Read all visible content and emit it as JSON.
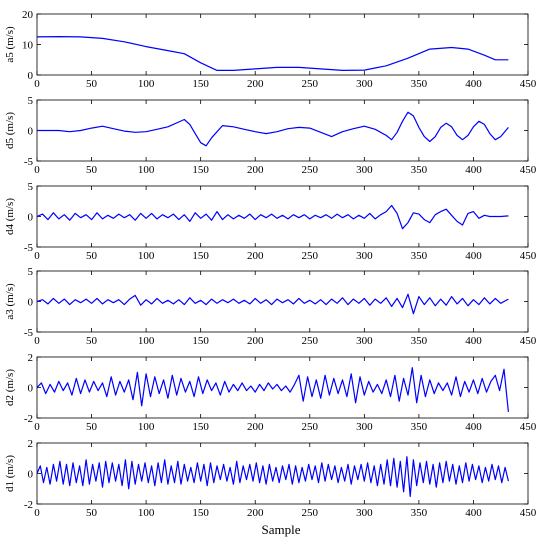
{
  "figure": {
    "xlabel": "Sample"
  },
  "colors": {
    "trace": "#0000ff",
    "axis": "#000000",
    "background": "#ffffff"
  },
  "chart_data": [
    {
      "type": "line",
      "ylabel": "a5 (m/s)",
      "xlim": [
        0,
        450
      ],
      "ylim": [
        0,
        20
      ],
      "xticks": [
        0,
        50,
        100,
        150,
        200,
        250,
        300,
        350,
        400,
        450
      ],
      "yticks": [
        0,
        10,
        20
      ],
      "x": [
        0,
        20,
        40,
        60,
        80,
        100,
        120,
        135,
        150,
        165,
        180,
        200,
        220,
        240,
        260,
        280,
        300,
        320,
        340,
        360,
        380,
        395,
        410,
        420,
        432
      ],
      "y": [
        12.5,
        12.6,
        12.5,
        12.0,
        10.9,
        9.3,
        8.0,
        7.0,
        4.0,
        1.5,
        1.5,
        2.0,
        2.5,
        2.5,
        2.0,
        1.5,
        1.6,
        3.0,
        5.5,
        8.5,
        9.0,
        8.5,
        6.5,
        5.0,
        5.0
      ],
      "grid": false
    },
    {
      "type": "line",
      "ylabel": "d5 (m/s)",
      "xlim": [
        0,
        450
      ],
      "ylim": [
        -5,
        5
      ],
      "xticks": [
        0,
        50,
        100,
        150,
        200,
        250,
        300,
        350,
        400,
        450
      ],
      "yticks": [
        -5,
        0,
        5
      ],
      "x": [
        0,
        10,
        20,
        30,
        40,
        50,
        60,
        70,
        80,
        90,
        100,
        110,
        120,
        130,
        135,
        140,
        145,
        150,
        155,
        160,
        170,
        180,
        190,
        200,
        210,
        220,
        230,
        240,
        250,
        260,
        270,
        280,
        290,
        300,
        310,
        320,
        325,
        330,
        335,
        340,
        345,
        350,
        355,
        360,
        365,
        370,
        375,
        380,
        385,
        390,
        395,
        400,
        405,
        410,
        415,
        420,
        425,
        432
      ],
      "y": [
        0.0,
        0.0,
        0.0,
        -0.2,
        0.0,
        0.4,
        0.7,
        0.3,
        -0.1,
        -0.3,
        -0.2,
        0.2,
        0.6,
        1.4,
        1.8,
        1.0,
        -0.5,
        -2.0,
        -2.5,
        -1.2,
        0.8,
        0.6,
        0.2,
        -0.2,
        -0.5,
        -0.2,
        0.3,
        0.5,
        0.4,
        -0.3,
        -1.0,
        -0.2,
        0.3,
        0.7,
        0.2,
        -0.8,
        -1.5,
        -0.3,
        1.5,
        3.0,
        2.4,
        0.5,
        -1.0,
        -1.8,
        -1.0,
        0.5,
        1.2,
        0.6,
        -0.8,
        -1.5,
        -0.8,
        0.6,
        1.5,
        1.0,
        -0.5,
        -1.5,
        -1.0,
        0.5
      ],
      "grid": false
    },
    {
      "type": "line",
      "ylabel": "d4 (m/s)",
      "xlim": [
        0,
        450
      ],
      "ylim": [
        -5,
        5
      ],
      "xticks": [
        0,
        50,
        100,
        150,
        200,
        250,
        300,
        350,
        400,
        450
      ],
      "yticks": [
        -5,
        0,
        5
      ],
      "x": [
        0,
        5,
        10,
        15,
        20,
        25,
        30,
        35,
        40,
        45,
        50,
        55,
        60,
        65,
        70,
        75,
        80,
        85,
        90,
        95,
        100,
        105,
        110,
        115,
        120,
        125,
        130,
        135,
        140,
        145,
        150,
        155,
        160,
        165,
        170,
        175,
        180,
        185,
        190,
        195,
        200,
        205,
        210,
        215,
        220,
        225,
        230,
        235,
        240,
        245,
        250,
        255,
        260,
        265,
        270,
        275,
        280,
        285,
        290,
        295,
        300,
        305,
        310,
        315,
        320,
        325,
        330,
        335,
        340,
        345,
        350,
        355,
        360,
        365,
        370,
        375,
        380,
        385,
        390,
        395,
        400,
        405,
        410,
        415,
        420,
        425,
        432
      ],
      "y": [
        0.0,
        0.4,
        -0.5,
        0.6,
        -0.4,
        0.3,
        -0.6,
        0.5,
        -0.2,
        0.3,
        -0.5,
        0.6,
        -0.4,
        0.2,
        -0.3,
        0.4,
        -0.2,
        0.3,
        -0.6,
        0.5,
        -0.3,
        0.5,
        -0.4,
        0.3,
        -0.2,
        0.4,
        -0.5,
        0.3,
        -0.8,
        0.6,
        -0.3,
        0.4,
        -0.6,
        0.8,
        -0.5,
        0.3,
        -0.4,
        0.2,
        -0.3,
        0.4,
        -0.5,
        0.3,
        -0.2,
        0.4,
        -0.3,
        0.2,
        -0.4,
        0.3,
        -0.2,
        0.3,
        -0.4,
        0.2,
        -0.2,
        0.3,
        -0.3,
        0.4,
        -0.2,
        0.3,
        -0.4,
        0.2,
        -0.3,
        0.5,
        -0.4,
        0.3,
        0.8,
        1.8,
        0.5,
        -2.0,
        -1.0,
        0.6,
        0.4,
        -0.5,
        -1.0,
        0.3,
        0.8,
        1.2,
        0.2,
        -0.8,
        -1.4,
        0.5,
        0.8,
        -0.3,
        0.2,
        0.0,
        0.0,
        0.0,
        0.1
      ],
      "grid": false
    },
    {
      "type": "line",
      "ylabel": "a3 (m/s)",
      "xlim": [
        0,
        450
      ],
      "ylim": [
        -5,
        5
      ],
      "xticks": [
        0,
        50,
        100,
        150,
        200,
        250,
        300,
        350,
        400,
        450
      ],
      "yticks": [
        -5,
        0,
        5
      ],
      "x": [
        0,
        5,
        10,
        15,
        20,
        25,
        30,
        35,
        40,
        45,
        50,
        55,
        60,
        65,
        70,
        75,
        80,
        85,
        90,
        95,
        100,
        105,
        110,
        115,
        120,
        125,
        130,
        135,
        140,
        145,
        150,
        155,
        160,
        165,
        170,
        175,
        180,
        185,
        190,
        195,
        200,
        205,
        210,
        215,
        220,
        225,
        230,
        235,
        240,
        245,
        250,
        255,
        260,
        265,
        270,
        275,
        280,
        285,
        290,
        295,
        300,
        305,
        310,
        315,
        320,
        325,
        330,
        335,
        340,
        345,
        350,
        355,
        360,
        365,
        370,
        375,
        380,
        385,
        390,
        395,
        400,
        405,
        410,
        415,
        420,
        425,
        432
      ],
      "y": [
        0.0,
        0.3,
        -0.4,
        0.5,
        -0.3,
        0.4,
        -0.5,
        0.3,
        -0.2,
        0.4,
        -0.3,
        0.5,
        -0.4,
        0.3,
        -0.2,
        0.3,
        -0.5,
        0.4,
        1.0,
        -0.6,
        0.3,
        -0.4,
        0.5,
        -0.3,
        0.2,
        -0.4,
        0.3,
        -0.5,
        0.6,
        -0.3,
        0.2,
        -0.5,
        0.4,
        -0.3,
        0.3,
        -0.2,
        0.4,
        -0.3,
        0.2,
        -0.4,
        0.5,
        -0.3,
        0.3,
        -0.5,
        0.4,
        -0.2,
        0.3,
        -0.4,
        0.5,
        -0.3,
        0.2,
        -0.4,
        0.3,
        -0.5,
        0.4,
        -0.3,
        0.6,
        -0.5,
        0.4,
        -0.3,
        0.5,
        -0.6,
        0.4,
        -0.3,
        0.6,
        -0.8,
        0.5,
        -1.0,
        1.2,
        -2.0,
        0.8,
        -0.5,
        0.6,
        -0.7,
        0.4,
        -0.6,
        0.8,
        -0.4,
        0.5,
        -0.7,
        0.3,
        -0.5,
        0.6,
        -0.4,
        0.5,
        -0.3,
        0.4
      ],
      "grid": false
    },
    {
      "type": "line",
      "ylabel": "d2 (m/s)",
      "xlim": [
        0,
        450
      ],
      "ylim": [
        -2,
        2
      ],
      "xticks": [
        0,
        50,
        100,
        150,
        200,
        250,
        300,
        350,
        400,
        450
      ],
      "yticks": [
        -2,
        0,
        2
      ],
      "x": [
        0,
        4,
        8,
        12,
        16,
        20,
        24,
        28,
        32,
        36,
        40,
        44,
        48,
        52,
        56,
        60,
        64,
        68,
        72,
        76,
        80,
        84,
        88,
        92,
        96,
        100,
        104,
        108,
        112,
        116,
        120,
        124,
        128,
        132,
        136,
        140,
        144,
        148,
        152,
        156,
        160,
        164,
        168,
        172,
        176,
        180,
        184,
        188,
        192,
        196,
        200,
        204,
        208,
        212,
        216,
        220,
        224,
        228,
        232,
        236,
        240,
        244,
        248,
        252,
        256,
        260,
        264,
        268,
        272,
        276,
        280,
        284,
        288,
        292,
        296,
        300,
        304,
        308,
        312,
        316,
        320,
        324,
        328,
        332,
        336,
        340,
        344,
        348,
        352,
        356,
        360,
        364,
        368,
        372,
        376,
        380,
        384,
        388,
        392,
        396,
        400,
        404,
        408,
        412,
        416,
        420,
        424,
        428,
        432
      ],
      "y": [
        0.0,
        0.3,
        -0.4,
        0.2,
        -0.3,
        0.4,
        -0.2,
        0.3,
        -0.5,
        0.6,
        -0.4,
        0.5,
        -0.3,
        0.4,
        -0.2,
        0.3,
        -0.6,
        0.7,
        -0.5,
        0.4,
        -0.3,
        0.5,
        -0.8,
        1.0,
        -1.2,
        0.9,
        -0.6,
        0.7,
        -0.4,
        0.5,
        -0.7,
        0.8,
        -0.5,
        0.6,
        -0.3,
        0.4,
        -0.6,
        0.7,
        -0.4,
        0.5,
        -0.2,
        0.3,
        -0.5,
        0.4,
        -0.3,
        0.2,
        -0.2,
        0.3,
        -0.2,
        0.1,
        -0.3,
        0.2,
        -0.2,
        0.3,
        -0.1,
        0.2,
        -0.2,
        0.1,
        -0.3,
        0.2,
        0.8,
        -0.9,
        0.7,
        -0.6,
        0.5,
        -0.7,
        0.8,
        -0.5,
        0.6,
        -0.4,
        0.5,
        -0.6,
        0.9,
        -1.0,
        0.7,
        -0.5,
        0.4,
        -0.3,
        0.2,
        -0.4,
        0.5,
        -0.6,
        0.8,
        -0.9,
        0.6,
        -0.5,
        1.3,
        -1.0,
        0.8,
        -0.6,
        0.5,
        -0.4,
        0.3,
        -0.2,
        0.3,
        -0.5,
        0.7,
        -0.6,
        0.4,
        -0.3,
        0.5,
        -0.4,
        0.6,
        -0.3,
        0.4,
        0.8,
        -0.2,
        1.2,
        -1.6
      ],
      "grid": false
    },
    {
      "type": "line",
      "ylabel": "d1 (m/s)",
      "xlim": [
        0,
        450
      ],
      "ylim": [
        -2,
        2
      ],
      "xticks": [
        0,
        50,
        100,
        150,
        200,
        250,
        300,
        350,
        400,
        450
      ],
      "yticks": [
        -2,
        0,
        2
      ],
      "x": [
        0,
        3,
        6,
        9,
        12,
        15,
        18,
        21,
        24,
        27,
        30,
        33,
        36,
        39,
        42,
        45,
        48,
        51,
        54,
        57,
        60,
        63,
        66,
        69,
        72,
        75,
        78,
        81,
        84,
        87,
        90,
        93,
        96,
        99,
        102,
        105,
        108,
        111,
        114,
        117,
        120,
        123,
        126,
        129,
        132,
        135,
        138,
        141,
        144,
        147,
        150,
        153,
        156,
        159,
        162,
        165,
        168,
        171,
        174,
        177,
        180,
        183,
        186,
        189,
        192,
        195,
        198,
        201,
        204,
        207,
        210,
        213,
        216,
        219,
        222,
        225,
        228,
        231,
        234,
        237,
        240,
        243,
        246,
        249,
        252,
        255,
        258,
        261,
        264,
        267,
        270,
        273,
        276,
        279,
        282,
        285,
        288,
        291,
        294,
        297,
        300,
        303,
        306,
        309,
        312,
        315,
        318,
        321,
        324,
        327,
        330,
        333,
        336,
        339,
        342,
        345,
        348,
        351,
        354,
        357,
        360,
        363,
        366,
        369,
        372,
        375,
        378,
        381,
        384,
        387,
        390,
        393,
        396,
        399,
        402,
        405,
        408,
        411,
        414,
        417,
        420,
        423,
        426,
        429,
        432
      ],
      "y": [
        0.0,
        0.5,
        -0.6,
        0.4,
        -0.7,
        0.6,
        -0.5,
        0.8,
        -0.7,
        0.6,
        -0.8,
        0.7,
        -0.6,
        0.5,
        -0.8,
        0.9,
        -0.7,
        0.6,
        -0.5,
        0.7,
        -0.9,
        0.8,
        -0.6,
        0.7,
        -0.5,
        0.6,
        -0.8,
        0.9,
        -1.0,
        0.8,
        -0.7,
        0.6,
        -0.5,
        0.7,
        -0.6,
        0.5,
        -0.8,
        0.7,
        -0.6,
        0.9,
        -0.7,
        0.5,
        -0.6,
        0.8,
        -0.7,
        0.6,
        -0.5,
        0.4,
        -0.6,
        0.7,
        -0.5,
        0.6,
        -0.8,
        0.7,
        -0.6,
        0.5,
        -0.4,
        0.6,
        -0.5,
        0.4,
        -0.7,
        0.8,
        -0.6,
        0.5,
        -0.4,
        0.6,
        -0.5,
        0.7,
        -0.6,
        0.5,
        -0.7,
        0.6,
        -0.5,
        0.4,
        -0.6,
        0.5,
        -0.4,
        0.6,
        -0.7,
        0.5,
        -0.6,
        0.4,
        -0.5,
        0.6,
        -0.4,
        0.5,
        -0.6,
        0.7,
        -0.5,
        0.6,
        -0.4,
        0.5,
        -0.6,
        0.4,
        -0.5,
        0.6,
        -0.7,
        0.5,
        -0.4,
        0.6,
        -0.5,
        0.7,
        -0.6,
        0.5,
        -0.8,
        0.6,
        -0.7,
        0.9,
        -0.8,
        1.0,
        -0.9,
        0.8,
        -1.2,
        1.1,
        -1.5,
        0.9,
        -0.8,
        0.7,
        -0.6,
        0.8,
        -0.7,
        0.6,
        -0.9,
        0.7,
        -0.6,
        0.8,
        -0.5,
        0.6,
        -0.7,
        0.5,
        -0.6,
        0.7,
        -0.5,
        0.6,
        -0.4,
        0.5,
        -0.6,
        0.4,
        -0.5,
        0.6,
        -0.4,
        0.5,
        -0.6,
        0.4,
        -0.5
      ],
      "grid": false
    }
  ]
}
